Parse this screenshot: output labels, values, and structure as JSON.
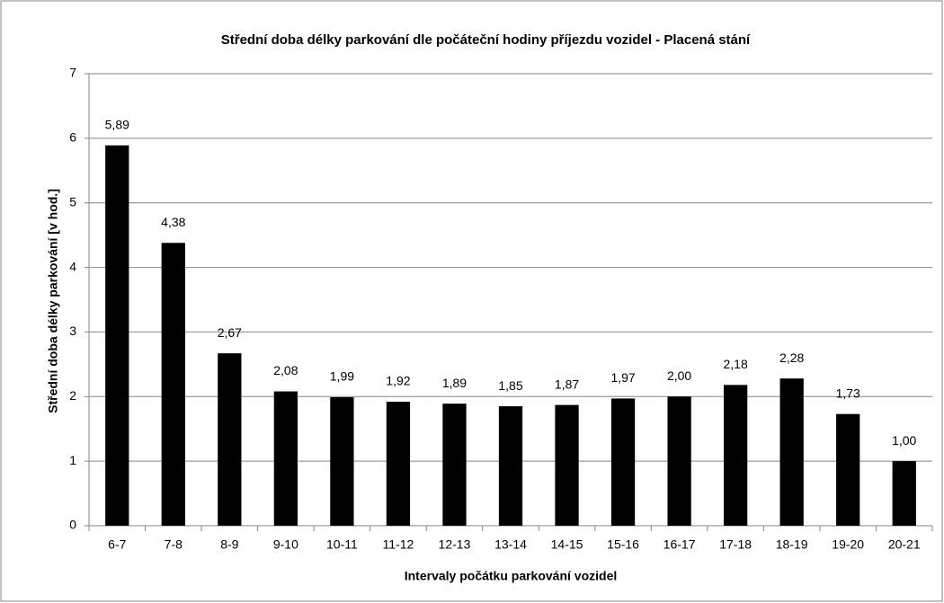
{
  "chart_data": {
    "type": "bar",
    "title": "Střední doba délky parkování dle počáteční hodiny příjezdu vozidel - Placená stání",
    "x_label": "Intervaly počátku parkování vozidel",
    "y_label": "Střední doba délky parkování [v hod.]",
    "categories": [
      "6-7",
      "7-8",
      "8-9",
      "9-10",
      "10-11",
      "11-12",
      "12-13",
      "13-14",
      "14-15",
      "15-16",
      "16-17",
      "17-18",
      "18-19",
      "19-20",
      "20-21"
    ],
    "values": [
      5.89,
      4.38,
      2.67,
      2.08,
      1.99,
      1.92,
      1.89,
      1.85,
      1.87,
      1.97,
      2.0,
      2.18,
      2.28,
      1.73,
      1.0
    ],
    "value_labels": [
      "5,89",
      "4,38",
      "2,67",
      "2,08",
      "1,99",
      "1,92",
      "1,89",
      "1,85",
      "1,87",
      "1,97",
      "2,00",
      "2,18",
      "2,28",
      "1,73",
      "1,00"
    ],
    "color": "#000000",
    "ylim": [
      0,
      7
    ],
    "yticks": [
      0,
      1,
      2,
      3,
      4,
      5,
      6,
      7
    ],
    "grid": true
  }
}
